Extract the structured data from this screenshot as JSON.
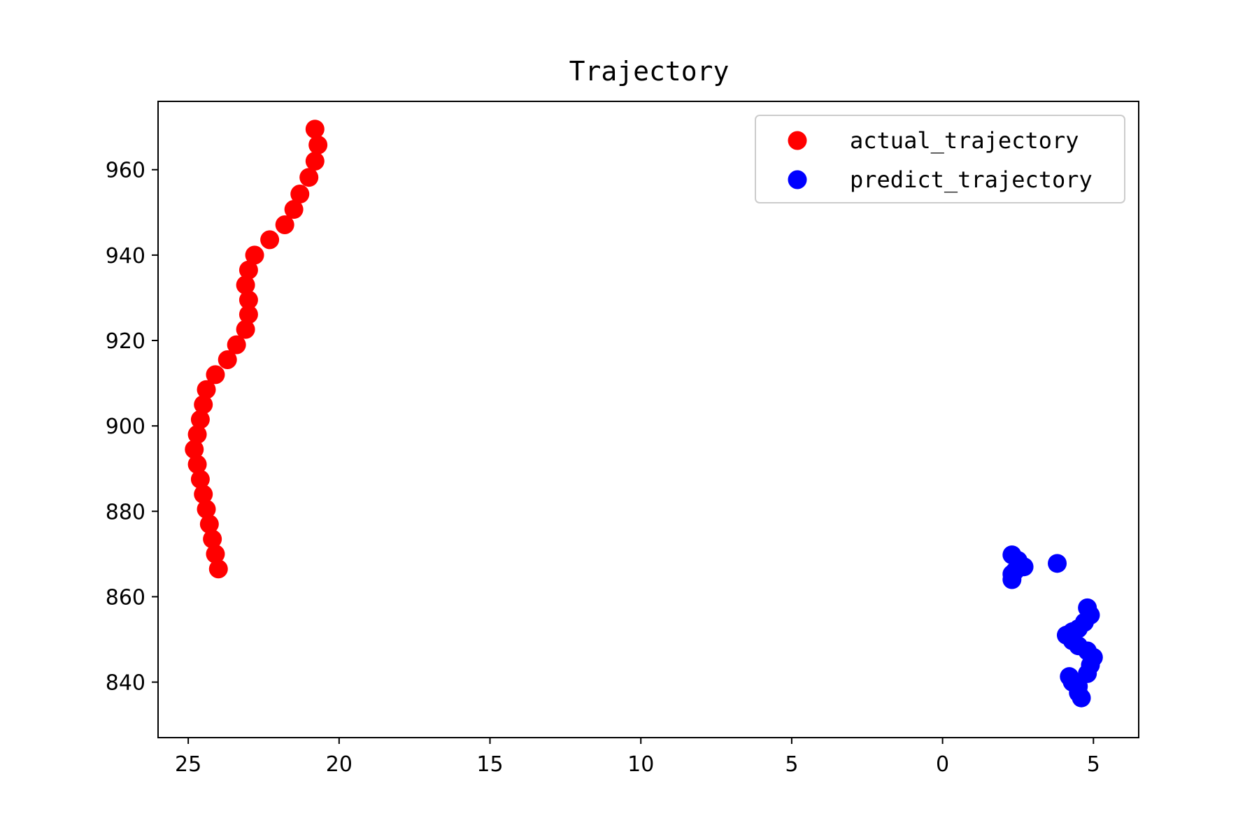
{
  "chart_data": {
    "type": "scatter",
    "title": "Trajectory",
    "xlabel": "",
    "ylabel": "",
    "x_inverted": true,
    "xlim": [
      26.0,
      -6.5
    ],
    "ylim": [
      827.0,
      976.0
    ],
    "x_ticks": [
      25,
      20,
      15,
      10,
      5,
      0,
      -5
    ],
    "x_tick_labels": [
      "25",
      "20",
      "15",
      "10",
      "5",
      "0",
      "5"
    ],
    "y_ticks": [
      840,
      860,
      880,
      900,
      920,
      940,
      960
    ],
    "y_tick_labels": [
      "840",
      "860",
      "880",
      "900",
      "920",
      "940",
      "960"
    ],
    "grid": false,
    "legend_position": "top-right",
    "series": [
      {
        "name": "actual_trajectory",
        "color": "#ff0000",
        "points": [
          [
            20.8,
            969.5
          ],
          [
            20.7,
            965.8
          ],
          [
            20.8,
            962.0
          ],
          [
            21.0,
            958.2
          ],
          [
            21.3,
            954.3
          ],
          [
            21.5,
            950.7
          ],
          [
            21.8,
            947.1
          ],
          [
            22.3,
            943.6
          ],
          [
            22.8,
            940.0
          ],
          [
            23.0,
            936.5
          ],
          [
            23.1,
            933.0
          ],
          [
            23.0,
            929.5
          ],
          [
            23.0,
            926.1
          ],
          [
            23.1,
            922.6
          ],
          [
            23.4,
            919.0
          ],
          [
            23.7,
            915.5
          ],
          [
            24.1,
            912.0
          ],
          [
            24.4,
            908.5
          ],
          [
            24.5,
            905.0
          ],
          [
            24.6,
            901.5
          ],
          [
            24.7,
            898.0
          ],
          [
            24.8,
            894.5
          ],
          [
            24.7,
            891.0
          ],
          [
            24.6,
            887.5
          ],
          [
            24.5,
            884.0
          ],
          [
            24.4,
            880.5
          ],
          [
            24.3,
            877.0
          ],
          [
            24.2,
            873.5
          ],
          [
            24.1,
            870.0
          ],
          [
            24.0,
            866.5
          ]
        ]
      },
      {
        "name": "predict_trajectory",
        "color": "#0000ff",
        "points": [
          [
            -2.3,
            869.8
          ],
          [
            -2.5,
            868.5
          ],
          [
            -2.7,
            867.0
          ],
          [
            -2.4,
            866.0
          ],
          [
            -2.3,
            865.3
          ],
          [
            -2.3,
            864.0
          ],
          [
            -3.8,
            867.8
          ],
          [
            -4.8,
            857.4
          ],
          [
            -4.9,
            855.7
          ],
          [
            -4.7,
            854.0
          ],
          [
            -4.5,
            852.5
          ],
          [
            -4.3,
            851.8
          ],
          [
            -4.1,
            851.0
          ],
          [
            -4.3,
            849.7
          ],
          [
            -4.5,
            848.5
          ],
          [
            -4.8,
            847.3
          ],
          [
            -5.0,
            845.8
          ],
          [
            -4.9,
            844.0
          ],
          [
            -4.8,
            842.0
          ],
          [
            -4.2,
            841.3
          ],
          [
            -4.3,
            840.0
          ],
          [
            -4.5,
            839.0
          ],
          [
            -4.5,
            837.5
          ],
          [
            -4.6,
            836.3
          ]
        ]
      }
    ]
  }
}
